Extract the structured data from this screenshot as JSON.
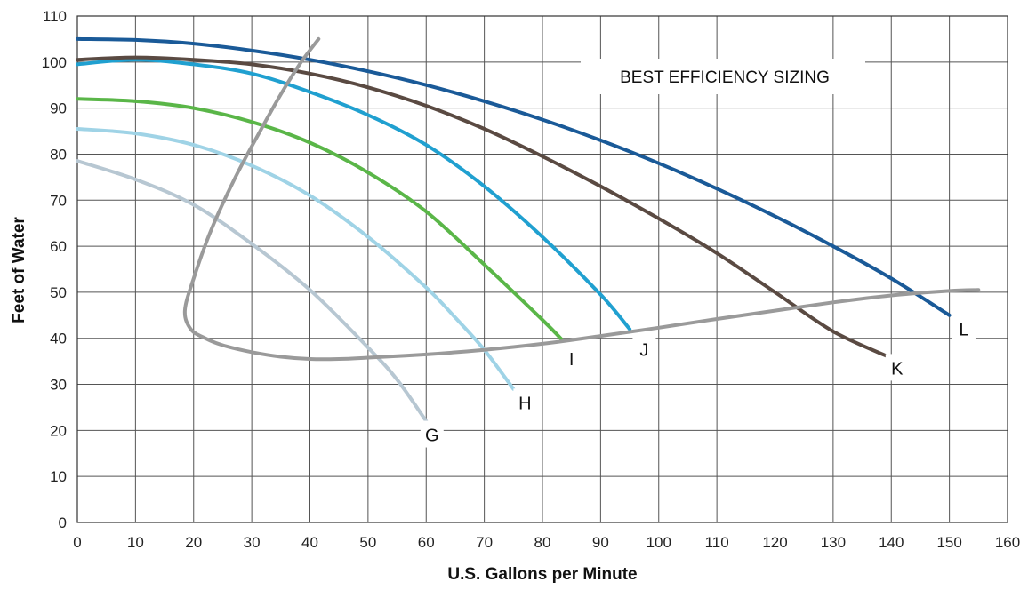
{
  "chart_data": {
    "type": "line",
    "title": "",
    "annotation": "BEST EFFICIENCY SIZING",
    "xlabel": "U.S. Gallons per Minute",
    "ylabel": "Feet of Water",
    "xlim": [
      0,
      160
    ],
    "ylim": [
      0,
      110
    ],
    "x_ticks": [
      "0",
      "10",
      "20",
      "30",
      "40",
      "50",
      "60",
      "70",
      "80",
      "90",
      "100",
      "110",
      "120",
      "130",
      "140",
      "150",
      "160"
    ],
    "y_ticks": [
      "0",
      "10",
      "20",
      "30",
      "40",
      "50",
      "60",
      "70",
      "80",
      "90",
      "100",
      "110"
    ],
    "grid": true,
    "series": [
      {
        "name": "G",
        "color": "#b7c7d2",
        "points": [
          [
            0,
            78.5
          ],
          [
            10,
            74.5
          ],
          [
            20,
            69
          ],
          [
            30,
            60.5
          ],
          [
            40,
            50.5
          ],
          [
            50,
            38
          ],
          [
            55,
            31
          ],
          [
            60,
            22
          ]
        ]
      },
      {
        "name": "H",
        "color": "#9fd3e6",
        "points": [
          [
            0,
            85.5
          ],
          [
            10,
            84.5
          ],
          [
            20,
            82
          ],
          [
            30,
            77.5
          ],
          [
            40,
            71
          ],
          [
            50,
            62
          ],
          [
            60,
            51
          ],
          [
            65,
            44.5
          ],
          [
            70,
            37.5
          ],
          [
            75,
            29
          ]
        ]
      },
      {
        "name": "I",
        "color": "#5ab648",
        "points": [
          [
            0,
            92
          ],
          [
            10,
            91.5
          ],
          [
            20,
            90
          ],
          [
            30,
            87
          ],
          [
            40,
            82.5
          ],
          [
            50,
            76
          ],
          [
            60,
            67.5
          ],
          [
            70,
            56
          ],
          [
            80,
            44
          ],
          [
            83.5,
            39.5
          ]
        ]
      },
      {
        "name": "J",
        "color": "#20a0d0",
        "points": [
          [
            0,
            99.5
          ],
          [
            10,
            100.5
          ],
          [
            20,
            99.5
          ],
          [
            30,
            97.5
          ],
          [
            40,
            93.5
          ],
          [
            50,
            88.5
          ],
          [
            60,
            82
          ],
          [
            70,
            73
          ],
          [
            80,
            62
          ],
          [
            90,
            49.5
          ],
          [
            95,
            42
          ]
        ]
      },
      {
        "name": "K",
        "color": "#5a4a42",
        "points": [
          [
            0,
            100.5
          ],
          [
            10,
            101
          ],
          [
            20,
            100.5
          ],
          [
            30,
            99.5
          ],
          [
            40,
            97.5
          ],
          [
            50,
            94.5
          ],
          [
            60,
            90.5
          ],
          [
            70,
            85.5
          ],
          [
            80,
            79.5
          ],
          [
            90,
            73
          ],
          [
            100,
            66
          ],
          [
            110,
            58.5
          ],
          [
            120,
            50
          ],
          [
            130,
            41.5
          ],
          [
            139.5,
            36
          ]
        ]
      },
      {
        "name": "L",
        "color": "#1a5a98",
        "points": [
          [
            0,
            105
          ],
          [
            10,
            104.8
          ],
          [
            20,
            104
          ],
          [
            30,
            102.5
          ],
          [
            40,
            100.5
          ],
          [
            50,
            98
          ],
          [
            60,
            95
          ],
          [
            70,
            91.5
          ],
          [
            80,
            87.5
          ],
          [
            90,
            83
          ],
          [
            100,
            78
          ],
          [
            110,
            72.5
          ],
          [
            120,
            66.5
          ],
          [
            130,
            60
          ],
          [
            140,
            53
          ],
          [
            150,
            45
          ]
        ]
      }
    ],
    "efficiency_line": {
      "color": "#9a9a9a",
      "points": [
        [
          41.5,
          105
        ],
        [
          38.5,
          100
        ],
        [
          35,
          93
        ],
        [
          31,
          84
        ],
        [
          27,
          74.5
        ],
        [
          23,
          63.5
        ],
        [
          20,
          53
        ],
        [
          18.5,
          46
        ],
        [
          19.5,
          42
        ],
        [
          22,
          40
        ],
        [
          25,
          38.5
        ],
        [
          30,
          37
        ],
        [
          35,
          36
        ],
        [
          40,
          35.5
        ],
        [
          45,
          35.5
        ],
        [
          50,
          35.8
        ],
        [
          60,
          36.5
        ],
        [
          70,
          37.5
        ],
        [
          80,
          38.8
        ],
        [
          90,
          40.5
        ],
        [
          100,
          42.3
        ],
        [
          110,
          44.2
        ],
        [
          120,
          46
        ],
        [
          130,
          47.8
        ],
        [
          140,
          49.3
        ],
        [
          150,
          50.3
        ],
        [
          155,
          50.5
        ]
      ]
    },
    "curve_label_positions": {
      "G": [
        61,
        19
      ],
      "H": [
        77,
        26
      ],
      "I": [
        85,
        35.5
      ],
      "J": [
        97.5,
        37.5
      ],
      "K": [
        141,
        33.5
      ],
      "L": [
        152.5,
        42
      ]
    }
  }
}
